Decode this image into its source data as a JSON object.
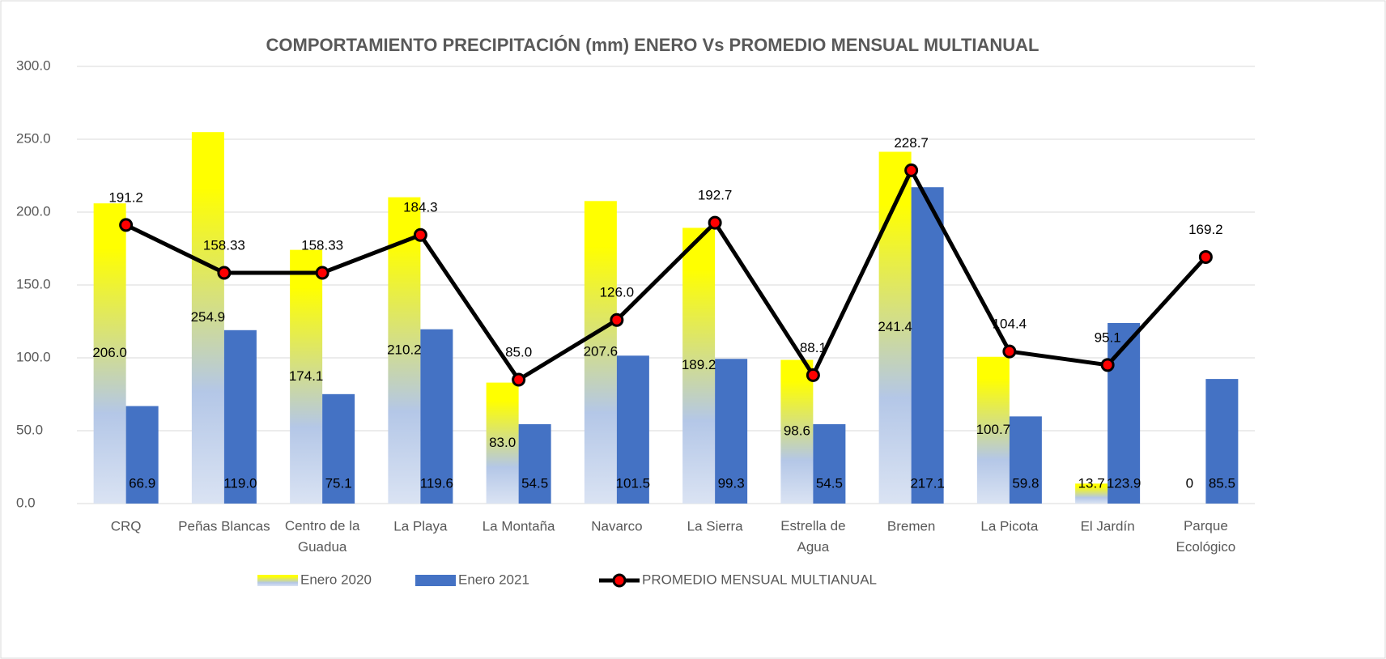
{
  "chart_data": {
    "type": "bar_line",
    "title": "COMPORTAMIENTO PRECIPITACIÓN (mm) ENERO Vs PROMEDIO MENSUAL MULTIANUAL",
    "categories": [
      "CRQ",
      "Peñas Blancas",
      "Centro de la Guadua",
      "La Playa",
      "La Montaña",
      "Navarco",
      "La Sierra",
      "Estrella de Agua",
      "Bremen",
      "La Picota",
      "El Jardín",
      "Parque Ecológico"
    ],
    "series": [
      {
        "name": "Enero 2020",
        "type": "bar",
        "color": "#ffff00",
        "values": [
          206.0,
          254.9,
          174.1,
          210.2,
          83.0,
          207.6,
          189.2,
          98.6,
          241.4,
          100.7,
          13.7,
          0
        ],
        "value_labels": [
          "206.0",
          "254.9",
          "174.1",
          "210.2",
          "83.0",
          "207.6",
          "189.2",
          "98.6",
          "241.4",
          "100.7",
          "13.7",
          "0"
        ]
      },
      {
        "name": "Enero 2021",
        "type": "bar",
        "color": "#4472c4",
        "values": [
          66.9,
          119.0,
          75.1,
          119.6,
          54.5,
          101.5,
          99.3,
          54.5,
          217.1,
          59.8,
          123.9,
          85.5
        ],
        "value_labels": [
          "66.9",
          "119.0",
          "75.1",
          "119.6",
          "54.5",
          "101.5",
          "99.3",
          "54.5",
          "217.1",
          "59.8",
          "123.9",
          "85.5"
        ]
      },
      {
        "name": "PROMEDIO MENSUAL MULTIANUAL",
        "type": "line",
        "color": "#000000",
        "marker_color": "#ff0000",
        "values": [
          191.2,
          158.33,
          158.33,
          184.3,
          85.0,
          126.0,
          192.7,
          88.1,
          228.7,
          104.4,
          95.1,
          169.2
        ],
        "value_labels": [
          "191.2",
          "158.33",
          "158.33",
          "184.3",
          "85.0",
          "126.0",
          "192.7",
          "88.1",
          "228.7",
          "104.4",
          "95.1",
          "169.2"
        ]
      }
    ],
    "ylim": [
      0,
      300
    ],
    "yticks": [
      {
        "value": 0,
        "label": "0.0"
      },
      {
        "value": 50,
        "label": "50.0"
      },
      {
        "value": 100,
        "label": "100.0"
      },
      {
        "value": 150,
        "label": "150.0"
      },
      {
        "value": 200,
        "label": "200.0"
      },
      {
        "value": 250,
        "label": "250.0"
      },
      {
        "value": 300,
        "label": "300.0"
      }
    ],
    "grid": true,
    "legend": "bottom"
  }
}
